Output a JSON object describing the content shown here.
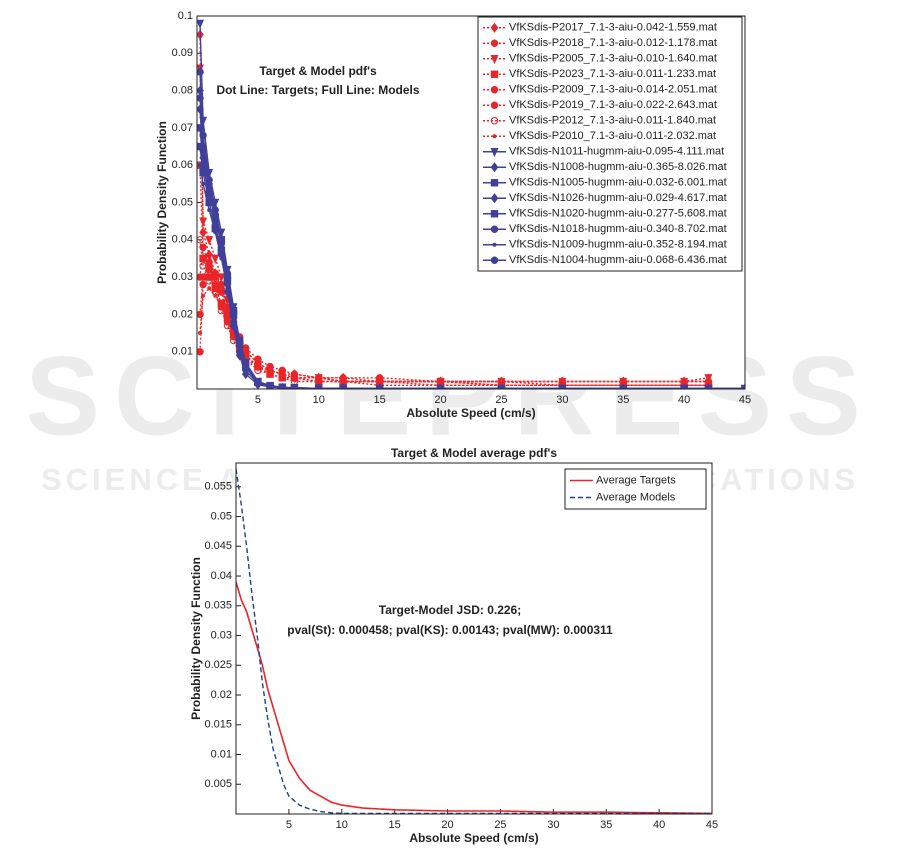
{
  "watermark": {
    "title": "SCITEPRESS",
    "subtitle": "SCIENCE AND TECHNOLOGY PUBLICATIONS"
  },
  "chart_data": [
    {
      "type": "line",
      "annotations": [
        "Target & Model pdf's",
        "Dot Line: Targets; Full Line: Models"
      ],
      "x_label": "Absolute Speed (cm/s)",
      "y_label": "Probability Density Function",
      "xlim": [
        0,
        45
      ],
      "xticks": [
        5,
        10,
        15,
        20,
        25,
        30,
        35,
        40,
        45
      ],
      "ylim": [
        0,
        0.1
      ],
      "yticks": [
        0.01,
        0.02,
        0.03,
        0.04,
        0.05,
        0.06,
        0.07,
        0.08,
        0.09,
        0.1
      ],
      "grid": false,
      "legend": "upper right",
      "x": [
        0.25,
        0.5,
        1,
        1.5,
        2,
        2.5,
        3,
        3.5,
        4,
        5,
        6,
        7,
        8,
        10,
        12,
        15,
        20,
        25,
        30,
        35,
        40,
        42,
        45
      ],
      "series": [
        {
          "name": "VfKSdis-P2017_7.1-3-aiu-0.042-1.559.mat",
          "color": "#e8262a",
          "style": "dotted",
          "marker": "diamond",
          "values": [
            0.095,
            0.042,
            0.036,
            0.031,
            0.027,
            0.021,
            0.016,
            0.012,
            0.009,
            0.006,
            0.005,
            0.004,
            0.004,
            0.003,
            0.003,
            0.002,
            0.002,
            0.002,
            0.002,
            0.002,
            0.002,
            0.002,
            null
          ]
        },
        {
          "name": "VfKSdis-P2018_7.1-3-aiu-0.012-1.178.mat",
          "color": "#e8262a",
          "style": "dotted",
          "marker": "circle",
          "values": [
            0.03,
            0.038,
            0.033,
            0.028,
            0.022,
            0.018,
            0.014,
            0.011,
            0.008,
            0.006,
            0.004,
            0.003,
            0.003,
            0.002,
            0.002,
            0.002,
            0.001,
            0.001,
            0.001,
            0.001,
            0.001,
            0.001,
            null
          ]
        },
        {
          "name": "VfKSdis-P2005_7.1-3-aiu-0.010-1.640.mat",
          "color": "#e8262a",
          "style": "dotted",
          "marker": "triangle",
          "values": [
            0.086,
            0.045,
            0.04,
            0.035,
            0.03,
            0.024,
            0.018,
            0.013,
            0.01,
            0.007,
            0.005,
            0.004,
            0.003,
            0.003,
            0.002,
            0.002,
            0.002,
            0.002,
            0.002,
            0.002,
            0.002,
            0.003,
            null
          ]
        },
        {
          "name": "VfKSdis-P2023_7.1-3-aiu-0.011-1.233.mat",
          "color": "#e8262a",
          "style": "dotted",
          "marker": "square",
          "values": [
            0.06,
            0.035,
            0.03,
            0.027,
            0.023,
            0.019,
            0.015,
            0.011,
            0.009,
            0.006,
            0.004,
            0.003,
            0.003,
            0.002,
            0.002,
            0.002,
            0.002,
            0.001,
            0.001,
            0.001,
            0.001,
            0.001,
            null
          ]
        },
        {
          "name": "VfKSdis-P2009_7.1-3-aiu-0.014-2.051.mat",
          "color": "#e8262a",
          "style": "dotted",
          "marker": "circle",
          "values": [
            0.01,
            0.028,
            0.032,
            0.03,
            0.026,
            0.02,
            0.016,
            0.013,
            0.01,
            0.007,
            0.005,
            0.004,
            0.003,
            0.003,
            0.002,
            0.002,
            0.002,
            0.002,
            0.001,
            0.001,
            0.001,
            0.001,
            null
          ]
        },
        {
          "name": "VfKSdis-P2019_7.1-3-aiu-0.022-2.643.mat",
          "color": "#e8262a",
          "style": "dotted",
          "marker": "circle",
          "values": [
            0.02,
            0.03,
            0.034,
            0.031,
            0.028,
            0.022,
            0.018,
            0.014,
            0.011,
            0.008,
            0.006,
            0.005,
            0.004,
            0.003,
            0.003,
            0.003,
            0.002,
            0.002,
            0.002,
            0.002,
            0.002,
            0.002,
            null
          ]
        },
        {
          "name": "VfKSdis-P2012_7.1-3-aiu-0.011-1.840.mat",
          "color": "#e8262a",
          "style": "dotted",
          "marker": "ring",
          "values": [
            0.04,
            0.033,
            0.029,
            0.026,
            0.021,
            0.017,
            0.013,
            0.01,
            0.008,
            0.005,
            0.004,
            0.003,
            0.002,
            0.002,
            0.002,
            0.001,
            0.001,
            0.001,
            0.001,
            0.001,
            0.001,
            0.001,
            null
          ]
        },
        {
          "name": "VfKSdis-P2010_7.1-3-aiu-0.011-2.032.mat",
          "color": "#e8262a",
          "style": "dotted",
          "marker": "point",
          "values": [
            0.015,
            0.025,
            0.027,
            0.025,
            0.022,
            0.018,
            0.014,
            0.011,
            0.009,
            0.006,
            0.005,
            0.004,
            0.003,
            0.003,
            0.002,
            0.002,
            0.002,
            0.001,
            0.001,
            0.001,
            0.001,
            0.001,
            null
          ]
        },
        {
          "name": "VfKSdis-N1011-hugmm-aiu-0.095-4.111.mat",
          "color": "#40409a",
          "style": "solid",
          "marker": "triangle",
          "values": [
            0.098,
            0.072,
            0.058,
            0.05,
            0.042,
            0.032,
            0.022,
            0.013,
            0.007,
            0.002,
            0.0008,
            0.0004,
            0.0003,
            0.0002,
            0.0002,
            0.0001,
            0.0001,
            0.0001,
            0.0001,
            0.0001,
            0.0001,
            0.0001,
            0.0001
          ]
        },
        {
          "name": "VfKSdis-N1008-hugmm-aiu-0.365-8.026.mat",
          "color": "#40409a",
          "style": "solid",
          "marker": "diamond",
          "values": [
            0.08,
            0.065,
            0.055,
            0.047,
            0.038,
            0.028,
            0.018,
            0.01,
            0.005,
            0.0015,
            0.0006,
            0.0003,
            0.0002,
            0.0002,
            0.0001,
            0.0001,
            0.0001,
            0.0001,
            0.0001,
            0.0001,
            0.0001,
            0.0001,
            0.0001
          ]
        },
        {
          "name": "VfKSdis-N1005-hugmm-aiu-0.032-6.001.mat",
          "color": "#40409a",
          "style": "solid",
          "marker": "square",
          "values": [
            0.07,
            0.06,
            0.052,
            0.046,
            0.04,
            0.03,
            0.02,
            0.012,
            0.006,
            0.0018,
            0.0007,
            0.0004,
            0.0003,
            0.0002,
            0.0002,
            0.0001,
            0.0001,
            0.0001,
            0.0001,
            0.0001,
            0.0001,
            0.0001,
            0.0001
          ]
        },
        {
          "name": "VfKSdis-N1026-hugmm-aiu-0.029-4.617.mat",
          "color": "#40409a",
          "style": "solid",
          "marker": "diamond",
          "values": [
            0.075,
            0.062,
            0.054,
            0.044,
            0.036,
            0.026,
            0.017,
            0.009,
            0.004,
            0.0012,
            0.0005,
            0.0003,
            0.0002,
            0.0001,
            0.0001,
            0.0001,
            0.0001,
            0.0001,
            0.0001,
            0.0001,
            0.0001,
            0.0001,
            0.0001
          ]
        },
        {
          "name": "VfKSdis-N1020-hugmm-aiu-0.277-5.608.mat",
          "color": "#40409a",
          "style": "solid",
          "marker": "square",
          "values": [
            0.065,
            0.058,
            0.05,
            0.043,
            0.037,
            0.029,
            0.021,
            0.013,
            0.007,
            0.002,
            0.0009,
            0.0005,
            0.0003,
            0.0002,
            0.0002,
            0.0001,
            0.0001,
            0.0001,
            0.0001,
            0.0001,
            0.0001,
            0.0001,
            0.0001
          ]
        },
        {
          "name": "VfKSdis-N1018-hugmm-aiu-0.340-8.702.mat",
          "color": "#40409a",
          "style": "solid",
          "marker": "circle",
          "values": [
            0.085,
            0.068,
            0.056,
            0.048,
            0.04,
            0.031,
            0.021,
            0.012,
            0.006,
            0.0017,
            0.0007,
            0.0004,
            0.0003,
            0.0002,
            0.0001,
            0.0001,
            0.0001,
            0.0001,
            0.0001,
            0.0001,
            0.0001,
            0.0001,
            0.0001
          ]
        },
        {
          "name": "VfKSdis-N1009-hugmm-aiu-0.352-8.194.mat",
          "color": "#40409a",
          "style": "solid",
          "marker": "point",
          "values": [
            0.06,
            0.055,
            0.048,
            0.042,
            0.035,
            0.027,
            0.019,
            0.011,
            0.006,
            0.0016,
            0.0006,
            0.0003,
            0.0002,
            0.0002,
            0.0001,
            0.0001,
            0.0001,
            0.0001,
            0.0001,
            0.0001,
            0.0001,
            0.0001,
            0.0001
          ]
        },
        {
          "name": "VfKSdis-N1004-hugmm-aiu-0.068-6.436.mat",
          "color": "#40409a",
          "style": "solid",
          "marker": "circle",
          "values": [
            0.078,
            0.064,
            0.053,
            0.045,
            0.039,
            0.03,
            0.02,
            0.012,
            0.006,
            0.0019,
            0.0008,
            0.0004,
            0.0003,
            0.0002,
            0.0002,
            0.0001,
            0.0001,
            0.0001,
            0.0001,
            0.0001,
            0.0001,
            0.0001,
            0.0001
          ]
        }
      ]
    },
    {
      "type": "line",
      "title": "Target & Model average pdf's",
      "annotations": [
        "Target-Model JSD: 0.226;",
        "pval(St): 0.000458; pval(KS): 0.00143; pval(MW): 0.000311"
      ],
      "x_label": "Absolute Speed (cm/s)",
      "y_label": "Probability Density Function",
      "xlim": [
        0,
        45
      ],
      "xticks": [
        5,
        10,
        15,
        20,
        25,
        30,
        35,
        40,
        45
      ],
      "ylim": [
        0,
        0.059
      ],
      "yticks": [
        0.005,
        0.01,
        0.015,
        0.02,
        0.025,
        0.03,
        0.035,
        0.04,
        0.045,
        0.05,
        0.055
      ],
      "grid": false,
      "legend": "upper right",
      "x": [
        0,
        0.5,
        1,
        1.5,
        2,
        2.5,
        3,
        3.5,
        4,
        4.5,
        5,
        6,
        7,
        8,
        9,
        10,
        12,
        15,
        20,
        25,
        30,
        35,
        40,
        45
      ],
      "series": [
        {
          "name": "Average Targets",
          "color": "#e8262a",
          "style": "solid",
          "marker": "none",
          "values": [
            0.039,
            0.036,
            0.034,
            0.031,
            0.028,
            0.025,
            0.021,
            0.018,
            0.015,
            0.012,
            0.009,
            0.006,
            0.004,
            0.003,
            0.002,
            0.0015,
            0.001,
            0.0007,
            0.0005,
            0.0005,
            0.0003,
            0.0003,
            0.0002,
            0.0001
          ]
        },
        {
          "name": "Average Models",
          "color": "#1f3f8f",
          "style": "dashed",
          "marker": "none",
          "values": [
            0.058,
            0.052,
            0.045,
            0.037,
            0.03,
            0.022,
            0.016,
            0.011,
            0.008,
            0.005,
            0.003,
            0.0015,
            0.0008,
            0.0004,
            0.0002,
            0.0001,
            0.0001,
            0.0001,
            0.0001,
            0.0001,
            0.0001,
            0.0001,
            0.0001,
            0.0001
          ]
        }
      ]
    }
  ]
}
